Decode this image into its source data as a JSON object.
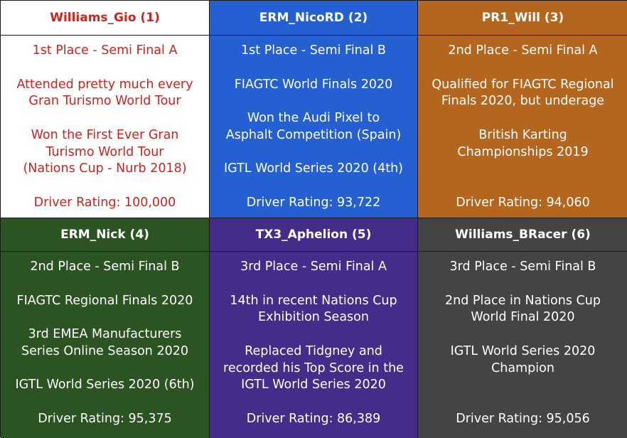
{
  "colors": {
    "williams_gio": "#d6201c",
    "erm_nicord_bg": "#2460d2",
    "pr1_will_bg": "#b4661e",
    "erm_nick_bg": "#2c5422",
    "tx3_aphelion_bg": "#452c8a",
    "williams_bracer_bg": "#444444"
  },
  "drivers": [
    {
      "name": "Williams_Gio (1)",
      "lines": [
        "1st Place - Semi Final A",
        "Attended pretty much every",
        "Gran Turismo World Tour",
        "Won the First Ever Gran",
        "Turismo World Tour",
        "(Nations Cup - Nurb 2018)",
        "Driver Rating: 100,000"
      ]
    },
    {
      "name": "ERM_NicoRD (2)",
      "lines": [
        "1st Place - Semi Final B",
        "FIAGTC World Finals 2020",
        "Won the Audi Pixel to",
        "Asphalt Competition (Spain)",
        "IGTL World Series 2020 (4th)",
        "Driver Rating: 93,722"
      ]
    },
    {
      "name": "PR1_Will (3)",
      "lines": [
        "2nd Place - Semi Final A",
        "Qualified for FIAGTC Regional",
        "Finals 2020, but underage",
        "British Karting",
        "Championships 2019",
        "Driver Rating: 94,060"
      ]
    },
    {
      "name": "ERM_Nick (4)",
      "lines": [
        "2nd Place - Semi Final B",
        "FIAGTC Regional Finals 2020",
        "3rd EMEA Manufacturers",
        "Series Online Season 2020",
        "IGTL World Series 2020 (6th)",
        "Driver Rating: 95,375"
      ]
    },
    {
      "name": "TX3_Aphelion (5)",
      "lines": [
        "3rd Place - Semi Final A",
        "14th in recent Nations Cup",
        "Exhibition Season",
        "Replaced Tidgney and",
        "recorded his Top Score in the",
        "IGTL World Series 2020",
        "Driver Rating: 86,389"
      ]
    },
    {
      "name": "Williams_BRacer (6)",
      "lines": [
        "3rd Place - Semi Final B",
        "2nd Place in Nations Cup",
        "World Final 2020",
        "IGTL World Series 2020",
        "Champion",
        "Driver Rating: 95,056"
      ]
    }
  ]
}
